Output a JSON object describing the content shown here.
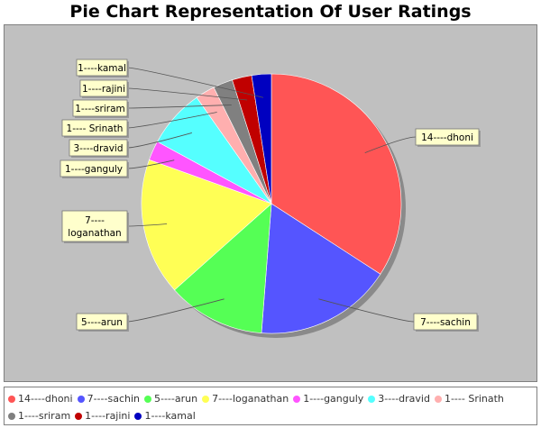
{
  "chart_data": {
    "type": "pie",
    "title": "Pie Chart Representation Of User Ratings",
    "slices": [
      {
        "label": "14----dhoni",
        "value": 14,
        "color": "#ff5555"
      },
      {
        "label": "7----sachin",
        "value": 7,
        "color": "#5555ff"
      },
      {
        "label": "5----arun",
        "value": 5,
        "color": "#55ff55"
      },
      {
        "label": "7----loganathan",
        "value": 7,
        "color": "#ffff55"
      },
      {
        "label": "1----ganguly",
        "value": 1,
        "color": "#ff55ff"
      },
      {
        "label": "3----dravid",
        "value": 3,
        "color": "#55ffff"
      },
      {
        "label": "1---- Srinath",
        "value": 1,
        "color": "#ffafaf"
      },
      {
        "label": "1----sriram",
        "value": 1,
        "color": "#808080"
      },
      {
        "label": "1----rajini",
        "value": 1,
        "color": "#c00000"
      },
      {
        "label": "1----kamal",
        "value": 1,
        "color": "#0000c0"
      }
    ],
    "legend": "bottom"
  }
}
